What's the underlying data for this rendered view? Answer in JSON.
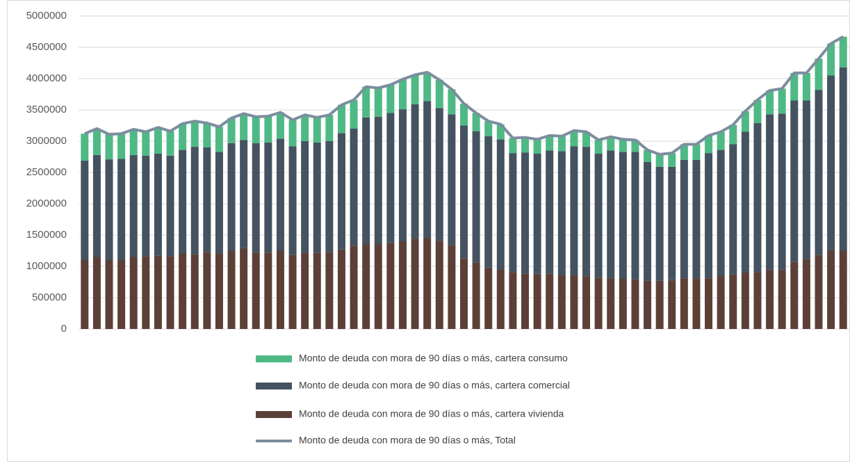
{
  "chart_data": {
    "type": "bar",
    "stacked": true,
    "grid": true,
    "ylim": [
      0,
      5000000
    ],
    "yticks": [
      0,
      500000,
      1000000,
      1500000,
      2000000,
      2500000,
      3000000,
      3500000,
      4000000,
      4500000,
      5000000
    ],
    "categories": [
      null,
      null,
      null,
      null,
      null,
      null,
      null,
      null,
      null,
      null,
      null,
      null,
      null,
      null,
      null,
      null,
      null,
      null,
      null,
      null,
      null,
      null,
      null,
      null,
      null,
      null,
      null,
      null,
      null,
      null,
      null,
      null,
      null,
      null,
      null,
      null,
      null,
      null,
      null,
      null,
      null,
      null,
      null,
      null,
      null,
      null,
      null,
      null,
      null,
      null,
      null,
      null,
      null,
      null,
      null,
      null,
      null,
      null,
      null,
      null,
      null,
      null,
      null
    ],
    "series": [
      {
        "name": "Monto de deuda con mora de 90 días o más, cartera consumo",
        "color": "#4fb985",
        "type": "bar",
        "values": [
          430000,
          420000,
          400000,
          400000,
          410000,
          380000,
          420000,
          390000,
          420000,
          410000,
          390000,
          400000,
          400000,
          420000,
          420000,
          420000,
          420000,
          420000,
          420000,
          400000,
          420000,
          450000,
          460000,
          490000,
          460000,
          450000,
          480000,
          470000,
          460000,
          450000,
          400000,
          350000,
          290000,
          240000,
          240000,
          240000,
          240000,
          230000,
          240000,
          240000,
          250000,
          240000,
          220000,
          220000,
          200000,
          190000,
          190000,
          200000,
          220000,
          250000,
          250000,
          280000,
          290000,
          310000,
          330000,
          370000,
          380000,
          400000,
          440000,
          440000,
          500000,
          510000,
          490000
        ]
      },
      {
        "name": "Monto de deuda con mora de 90 días o más, cartera comercial",
        "color": "#44535f",
        "type": "bar",
        "values": [
          1590000,
          1630000,
          1610000,
          1620000,
          1630000,
          1610000,
          1630000,
          1610000,
          1660000,
          1720000,
          1670000,
          1620000,
          1720000,
          1730000,
          1740000,
          1760000,
          1790000,
          1740000,
          1780000,
          1760000,
          1770000,
          1860000,
          1870000,
          2030000,
          2040000,
          2070000,
          2110000,
          2150000,
          2190000,
          2120000,
          2090000,
          2120000,
          2100000,
          2100000,
          2080000,
          1900000,
          1940000,
          1920000,
          1970000,
          1980000,
          2070000,
          2070000,
          1980000,
          2040000,
          2030000,
          2040000,
          1900000,
          1820000,
          1810000,
          1890000,
          1890000,
          2000000,
          2010000,
          2080000,
          2250000,
          2380000,
          2490000,
          2500000,
          2580000,
          2530000,
          2640000,
          2790000,
          2930000
        ]
      },
      {
        "name": "Monto de deuda con mora de 90 días o más, cartera vivienda",
        "color": "#5c4038",
        "type": "bar",
        "values": [
          1100000,
          1150000,
          1100000,
          1100000,
          1150000,
          1160000,
          1170000,
          1160000,
          1200000,
          1190000,
          1230000,
          1210000,
          1250000,
          1290000,
          1230000,
          1220000,
          1250000,
          1180000,
          1220000,
          1220000,
          1230000,
          1270000,
          1330000,
          1350000,
          1350000,
          1380000,
          1400000,
          1440000,
          1450000,
          1410000,
          1340000,
          1130000,
          1060000,
          980000,
          950000,
          910000,
          880000,
          880000,
          880000,
          860000,
          850000,
          840000,
          820000,
          810000,
          800000,
          790000,
          770000,
          770000,
          780000,
          810000,
          810000,
          810000,
          850000,
          870000,
          900000,
          910000,
          940000,
          940000,
          1070000,
          1120000,
          1180000,
          1260000,
          1250000
        ]
      },
      {
        "name": "Monto de deuda con mora de 90 días o más, Total",
        "color": "#7b8e9e",
        "type": "line",
        "values": [
          3120000,
          3200000,
          3110000,
          3120000,
          3190000,
          3150000,
          3220000,
          3160000,
          3280000,
          3320000,
          3290000,
          3230000,
          3370000,
          3440000,
          3390000,
          3400000,
          3460000,
          3340000,
          3420000,
          3380000,
          3420000,
          3580000,
          3660000,
          3870000,
          3850000,
          3900000,
          3990000,
          4060000,
          4100000,
          3980000,
          3830000,
          3600000,
          3450000,
          3320000,
          3270000,
          3050000,
          3060000,
          3030000,
          3090000,
          3080000,
          3170000,
          3150000,
          3020000,
          3070000,
          3030000,
          3020000,
          2860000,
          2790000,
          2810000,
          2950000,
          2950000,
          3090000,
          3150000,
          3260000,
          3480000,
          3660000,
          3810000,
          3840000,
          4090000,
          4090000,
          4320000,
          4560000,
          4670000
        ]
      }
    ]
  }
}
